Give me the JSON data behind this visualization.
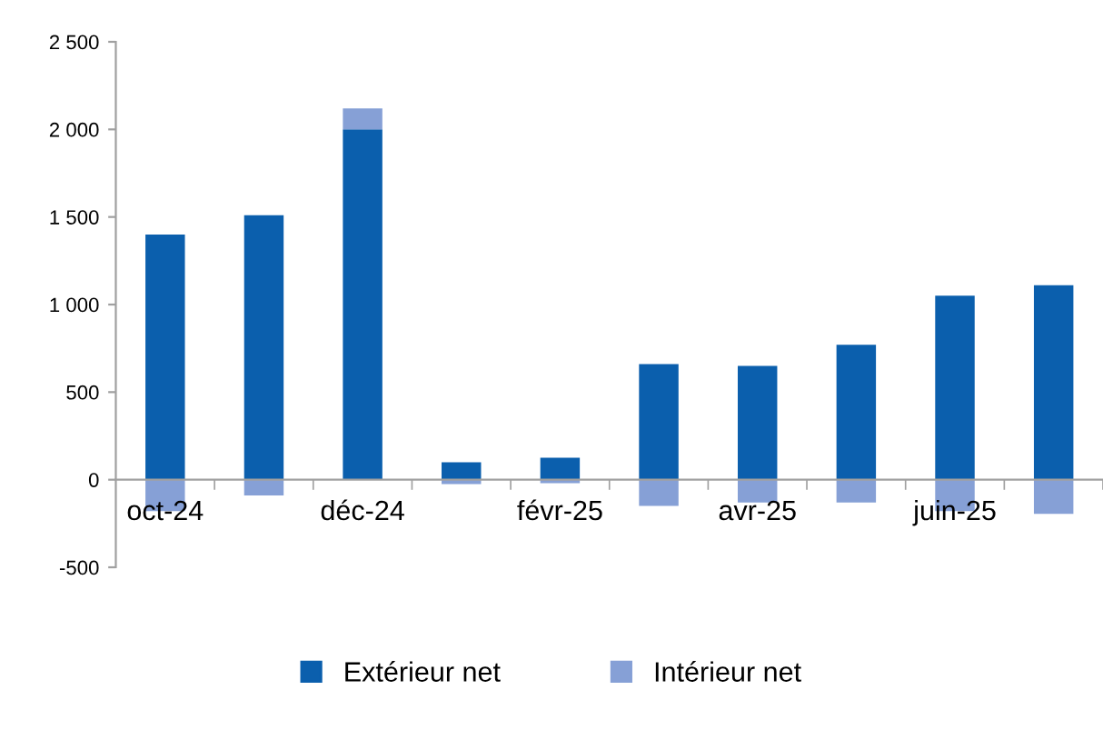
{
  "chart_data": {
    "type": "bar",
    "stacked": true,
    "categories": [
      "oct-24",
      null,
      "déc-24",
      null,
      "févr-25",
      null,
      "avr-25",
      null,
      "juin-25",
      null
    ],
    "series": [
      {
        "name": "Extérieur net",
        "color": "#0b5fad",
        "values": [
          1400,
          1510,
          2000,
          100,
          125,
          660,
          650,
          770,
          1050,
          1110
        ]
      },
      {
        "name": "Intérieur net",
        "color": "#86a0d6",
        "values": [
          -180,
          -90,
          120,
          -25,
          -20,
          -150,
          -130,
          -130,
          -180,
          -195
        ]
      }
    ],
    "ylim": [
      -500,
      2500
    ],
    "yticks": [
      {
        "value": -500,
        "label": "-500"
      },
      0,
      500,
      {
        "value": 1000,
        "label": "1 000"
      },
      {
        "value": 1500,
        "label": "1 500"
      },
      {
        "value": 2000,
        "label": "2 000"
      },
      {
        "value": 2500,
        "label": "2 500"
      }
    ],
    "grid": false,
    "legend": "bottom"
  }
}
